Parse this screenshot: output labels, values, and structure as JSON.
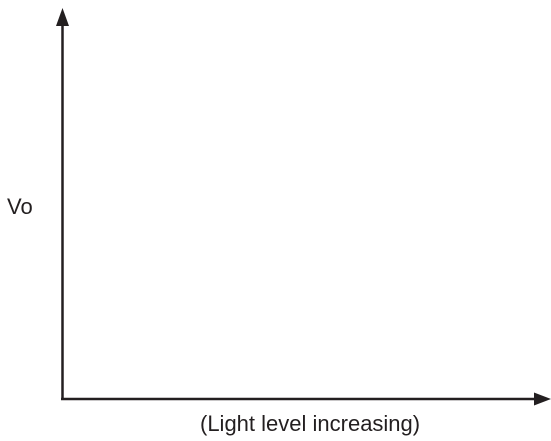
{
  "diagram": {
    "y_axis_label": "Vo",
    "x_axis_label": "(Light level increasing)",
    "line_color": "#231f20"
  }
}
